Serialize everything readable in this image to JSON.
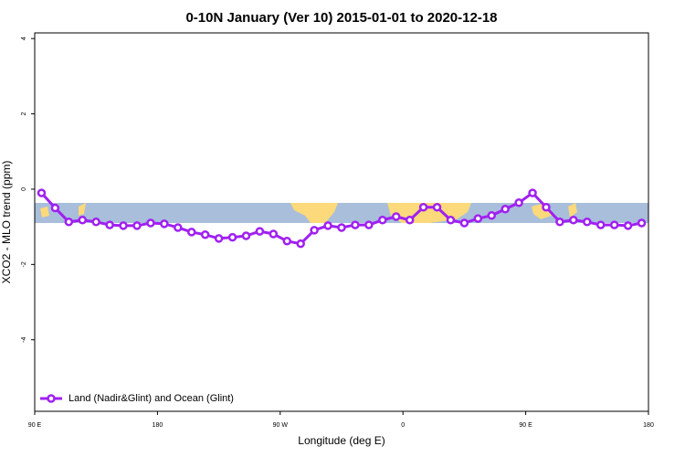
{
  "chart_data": {
    "type": "line",
    "title": "0-10N January (Ver 10)   2015-01-01 to 2020-12-18",
    "x_label": "Longitude (deg E)",
    "y_label": "XCO2 - MLO trend (ppm)",
    "x": [
      95,
      105,
      115,
      125,
      135,
      145,
      155,
      165,
      175,
      185,
      195,
      205,
      215,
      225,
      235,
      245,
      255,
      265,
      275,
      285,
      295,
      305,
      315,
      325,
      335,
      345,
      355,
      365,
      375,
      385,
      395,
      405,
      415,
      425,
      435,
      445,
      455,
      465,
      475,
      485,
      495,
      505,
      515,
      525,
      535
    ],
    "series": [
      {
        "name": "Land (Nadir&Glint) and Ocean (Glint)",
        "color": "#a020f0",
        "values": [
          -0.1,
          -0.5,
          -0.87,
          -0.82,
          -0.87,
          -0.95,
          -0.97,
          -0.97,
          -0.9,
          -0.92,
          -1.02,
          -1.14,
          -1.21,
          -1.31,
          -1.28,
          -1.24,
          -1.12,
          -1.19,
          -1.38,
          -1.45,
          -1.09,
          -0.97,
          -1.02,
          -0.95,
          -0.95,
          -0.82,
          -0.73,
          -0.82,
          -0.48,
          -0.48,
          -0.82,
          -0.9,
          -0.78,
          -0.7,
          -0.53,
          -0.36,
          -0.1,
          -0.48,
          -0.87,
          -0.82,
          -0.87,
          -0.95,
          -0.95,
          -0.97,
          -0.9
        ]
      }
    ],
    "xlim": [
      90,
      540
    ],
    "xticks": [
      {
        "value": 90,
        "label": "90 E"
      },
      180,
      {
        "value": 270,
        "label": "90 W"
      },
      {
        "value": 360,
        "label": "0"
      },
      {
        "value": 450,
        "label": "90 E"
      },
      {
        "value": 540,
        "label": "180"
      }
    ],
    "ylim": [
      -5.9,
      4.15
    ],
    "yticks": [
      -4,
      -2,
      0,
      2,
      4
    ],
    "legend": "bottom-left"
  }
}
